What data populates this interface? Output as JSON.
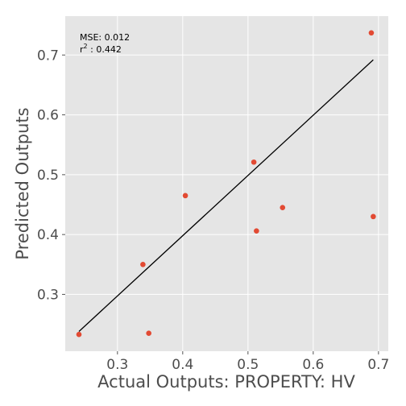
{
  "chart_data": {
    "type": "scatter",
    "title": "",
    "xlabel": "Actual Outputs: PROPERTY: HV",
    "ylabel": "Predicted Outputs",
    "xlim": [
      0.22,
      0.715
    ],
    "ylim": [
      0.205,
      0.765
    ],
    "x_ticks": [
      0.3,
      0.4,
      0.5,
      0.6,
      0.7
    ],
    "x_tick_labels": [
      "0.3",
      "0.4",
      "0.5",
      "0.6",
      "0.7"
    ],
    "y_ticks": [
      0.3,
      0.4,
      0.5,
      0.6,
      0.7
    ],
    "y_tick_labels": [
      "0.3",
      "0.4",
      "0.5",
      "0.6",
      "0.7"
    ],
    "grid": true,
    "points": [
      {
        "x": 0.241,
        "y": 0.233
      },
      {
        "x": 0.339,
        "y": 0.35
      },
      {
        "x": 0.348,
        "y": 0.235
      },
      {
        "x": 0.404,
        "y": 0.465
      },
      {
        "x": 0.509,
        "y": 0.521
      },
      {
        "x": 0.513,
        "y": 0.406
      },
      {
        "x": 0.553,
        "y": 0.445
      },
      {
        "x": 0.689,
        "y": 0.737
      },
      {
        "x": 0.692,
        "y": 0.43
      }
    ],
    "fit_line": {
      "x": [
        0.241,
        0.692
      ],
      "y": [
        0.238,
        0.692
      ]
    },
    "annotations": {
      "mse": "MSE: 0.012",
      "r2_label": "r",
      "r2_exponent": "2",
      "r2_value": " : 0.442"
    },
    "colors": {
      "background": "#e5e5e5",
      "grid": "#ffffff",
      "point": "#e24a33",
      "line": "#000000"
    }
  }
}
